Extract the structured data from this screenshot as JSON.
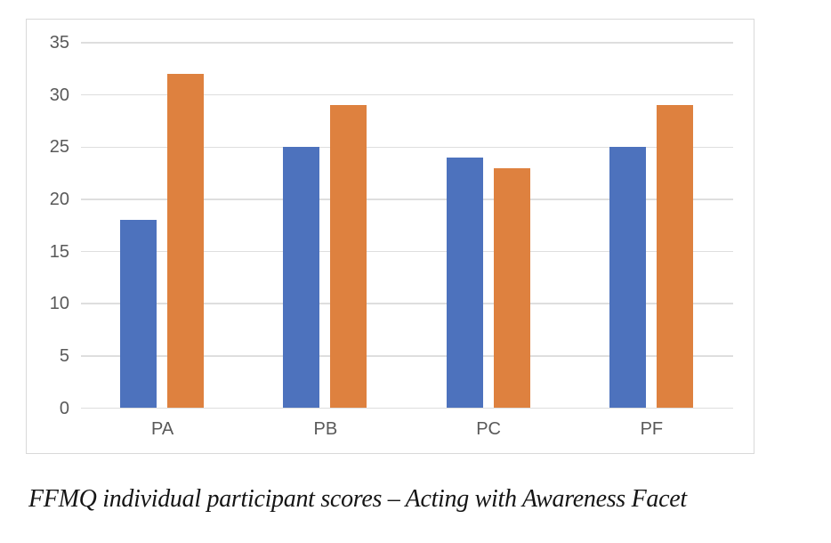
{
  "caption": "FFMQ individual participant scores – Acting with Awareness Facet",
  "chart_data": {
    "type": "bar",
    "title": "",
    "xlabel": "",
    "ylabel": "",
    "categories": [
      "PA",
      "PB",
      "PC",
      "PF"
    ],
    "series": [
      {
        "name": "blue-series",
        "color": "#4D72BD",
        "values": [
          18,
          25,
          24,
          25
        ]
      },
      {
        "name": "orange-series",
        "color": "#DE813F",
        "values": [
          32,
          29,
          23,
          29
        ]
      }
    ],
    "ylim": [
      0,
      35
    ],
    "yticks": [
      0,
      5,
      10,
      15,
      20,
      25,
      30,
      35
    ],
    "grid": true,
    "legend": "none"
  },
  "colors": {
    "bar_blue": "#4D72BD",
    "bar_orange": "#DE813F",
    "gridline": "#DEDEDE",
    "axis_label": "#595959",
    "frame_border": "#D9D9D9",
    "caption_text": "#151515"
  }
}
